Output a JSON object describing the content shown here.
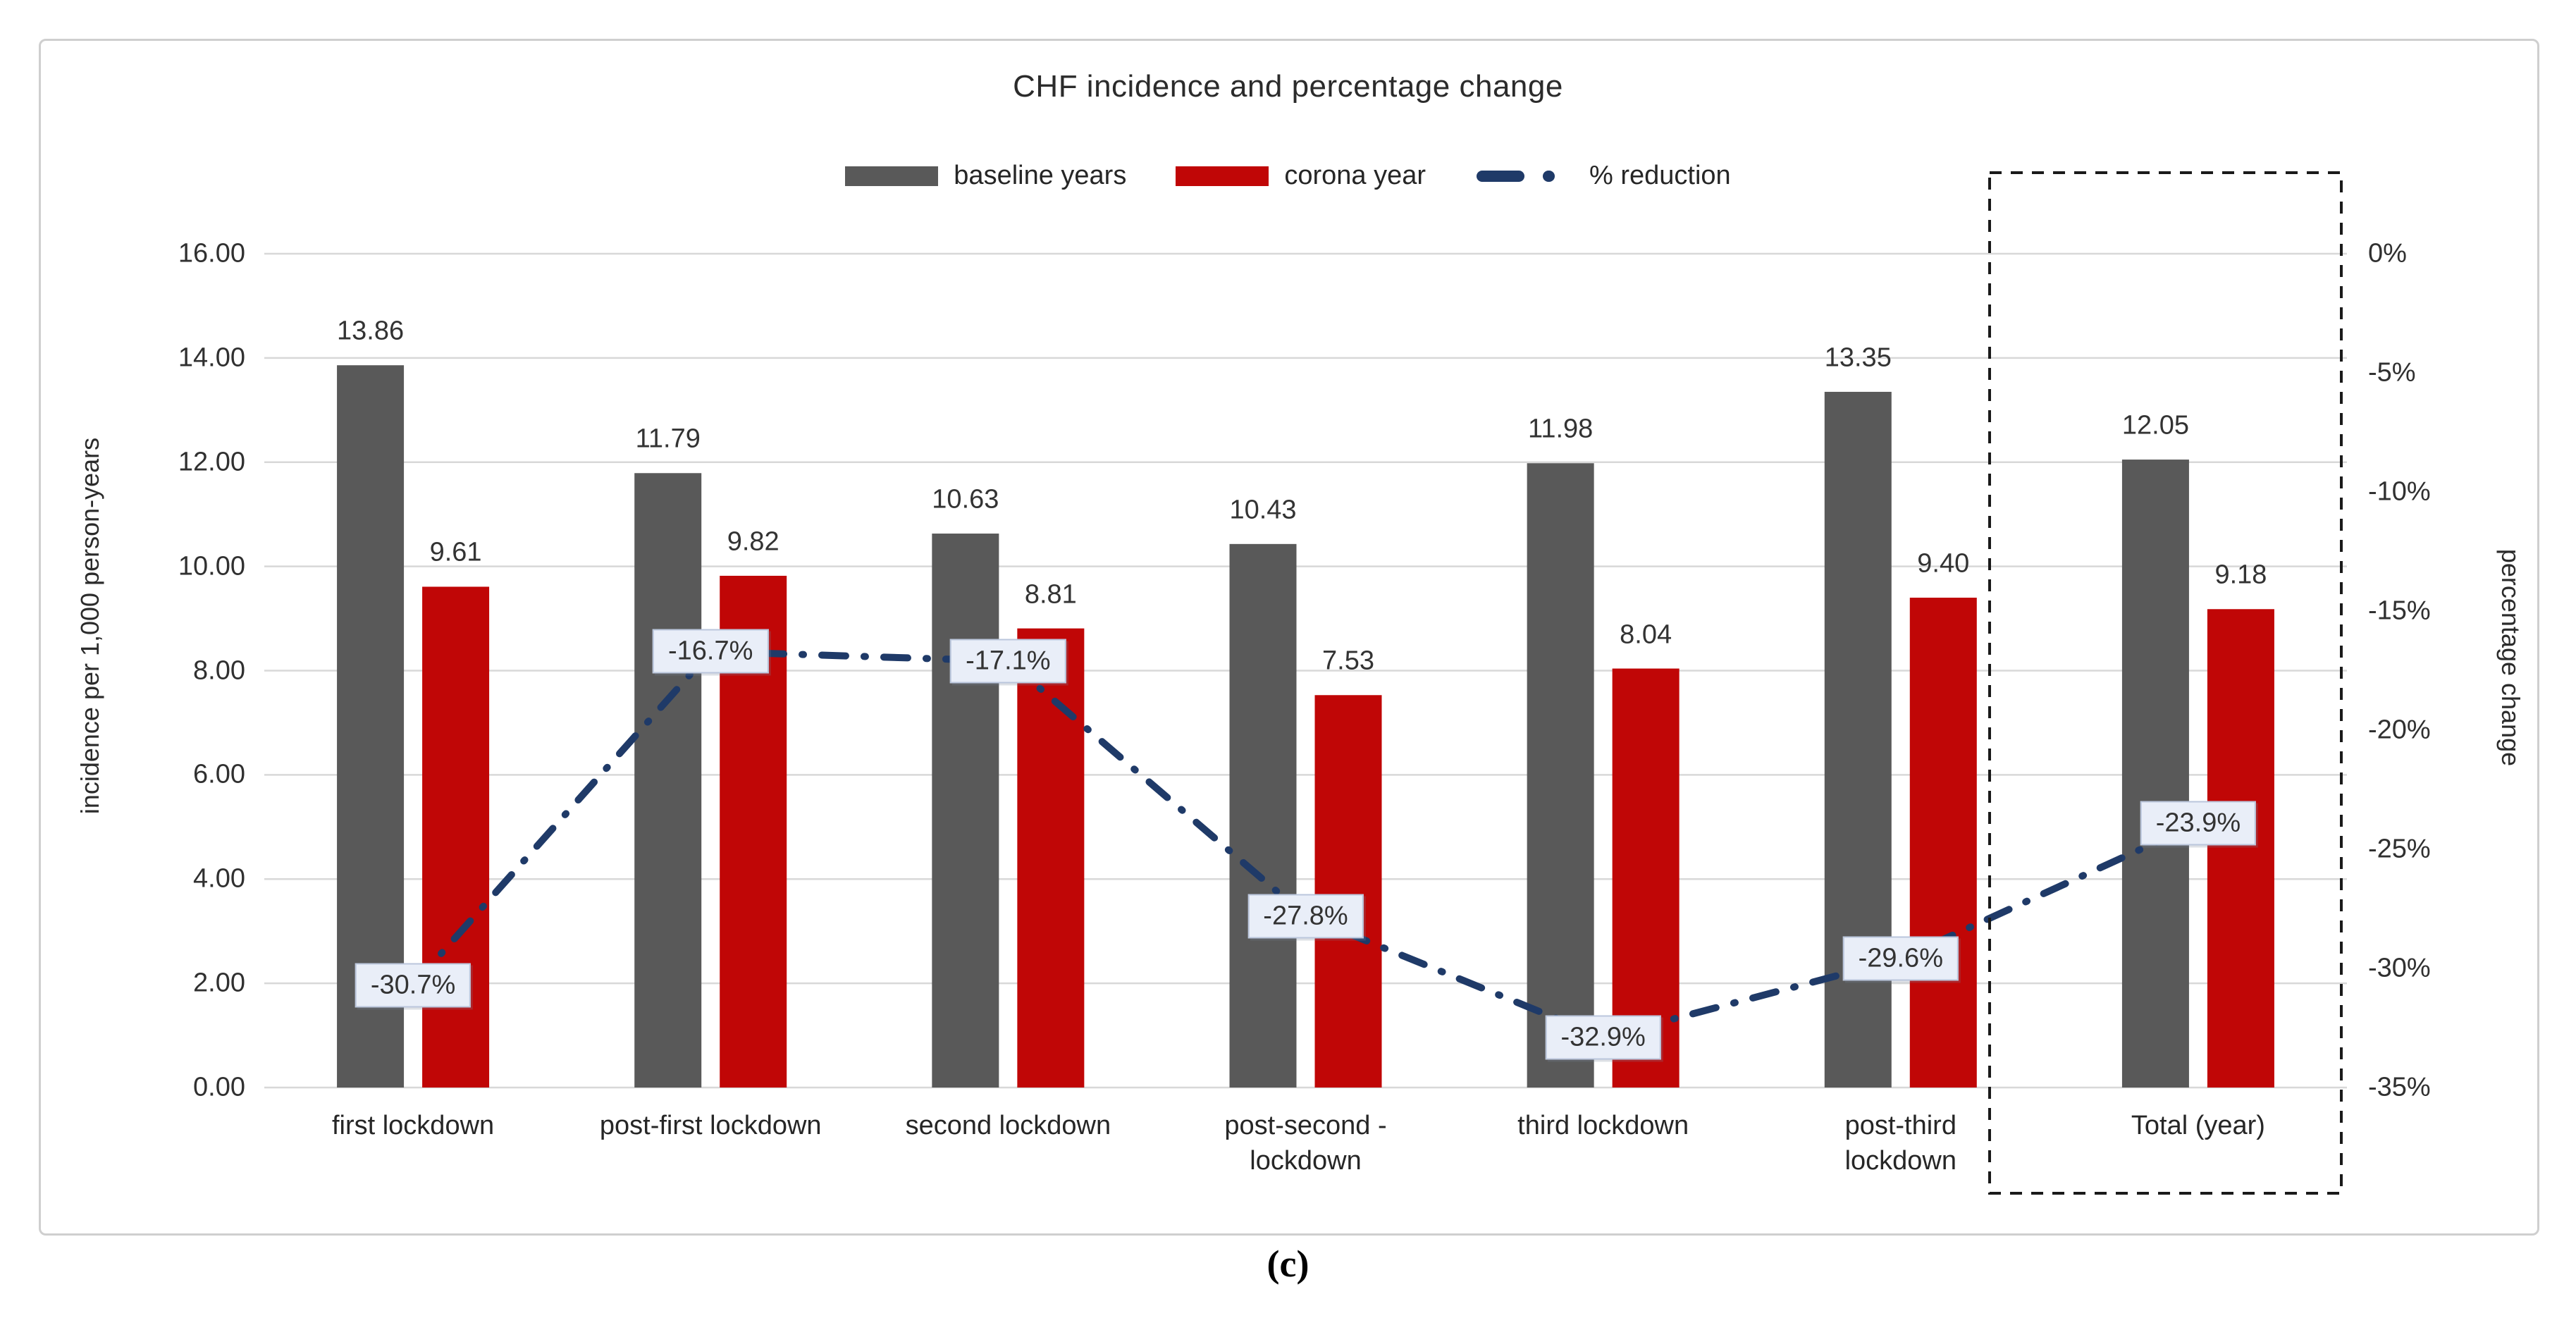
{
  "figure": {
    "caption": "(c)"
  },
  "chart_data": {
    "type": "bar",
    "subtype": "grouped-bars-with-line-overlay",
    "title": "CHF incidence and percentage change",
    "categories": [
      "first lockdown",
      "post-first lockdown",
      "second lockdown",
      "post-second -\nlockdown",
      "third lockdown",
      "post-third\nlockdown",
      "Total (year)"
    ],
    "series": [
      {
        "name": "baseline years",
        "type": "bar",
        "color": "#595959",
        "values": [
          13.86,
          11.79,
          10.63,
          10.43,
          11.98,
          13.35,
          12.05
        ]
      },
      {
        "name": "corona year",
        "type": "bar",
        "color": "#c00606",
        "values": [
          9.61,
          9.82,
          8.81,
          7.53,
          8.04,
          9.4,
          9.18
        ]
      },
      {
        "name": "% reduction",
        "type": "line",
        "color": "#1f3a68",
        "values": [
          -30.7,
          -16.7,
          -17.1,
          -27.8,
          -32.9,
          -29.6,
          -23.9
        ],
        "point_labels": [
          "-30.7%",
          "-16.7%",
          "-17.1%",
          "-27.8%",
          "-32.9%",
          "-29.6%",
          "-23.9%"
        ]
      }
    ],
    "left_axis": {
      "title": "incidence per 1,000 person-years",
      "min": 0,
      "max": 16,
      "ticks": [
        "16.00",
        "14.00",
        "12.00",
        "10.00",
        "8.00",
        "6.00",
        "4.00",
        "2.00",
        "0.00"
      ]
    },
    "right_axis": {
      "title": "percentage change",
      "min": -35,
      "max": 0,
      "ticks": [
        "0%",
        "-5%",
        "-10%",
        "-15%",
        "-20%",
        "-25%",
        "-30%",
        "-35%"
      ]
    },
    "legend": {
      "position": "top",
      "entries": [
        "baseline years",
        "corona year",
        "% reduction"
      ]
    },
    "grid": "horizontal",
    "gridline_color": "#d8d8d8",
    "highlight_box": {
      "category": "Total (year)",
      "style": "black-dashed-rectangle"
    },
    "pct_label_fill": "#e9eef8"
  }
}
